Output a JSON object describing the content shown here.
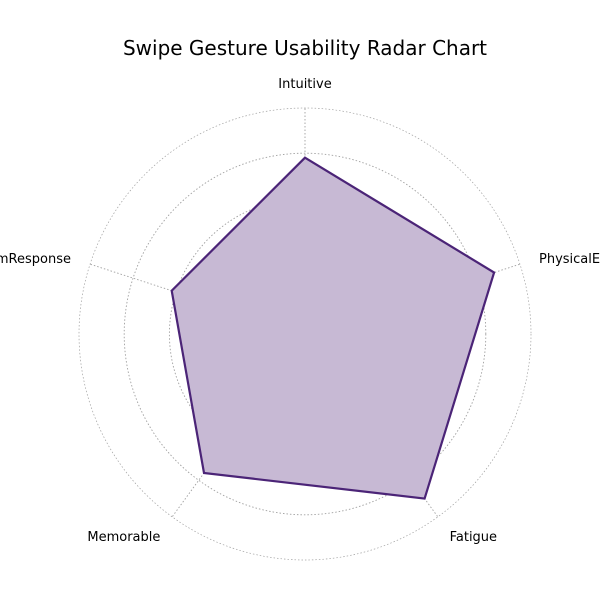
{
  "chart_data": {
    "type": "radar",
    "title": "Swipe Gesture Usability Radar Chart",
    "axes": [
      "Intuitive",
      "PhysicalEffort",
      "Fatigue",
      "Memorable",
      "SystemResponse"
    ],
    "values": [
      3.9,
      4.4,
      4.5,
      3.8,
      3.1
    ],
    "rlim": [
      0,
      5
    ],
    "ring_levels": [
      1,
      2,
      3,
      4,
      5
    ],
    "grid": true,
    "legend": "none",
    "colors": {
      "line": "#4b2477",
      "fill": "#c7b9d4",
      "grid": "#a0a0a0",
      "text": "#000000"
    }
  }
}
